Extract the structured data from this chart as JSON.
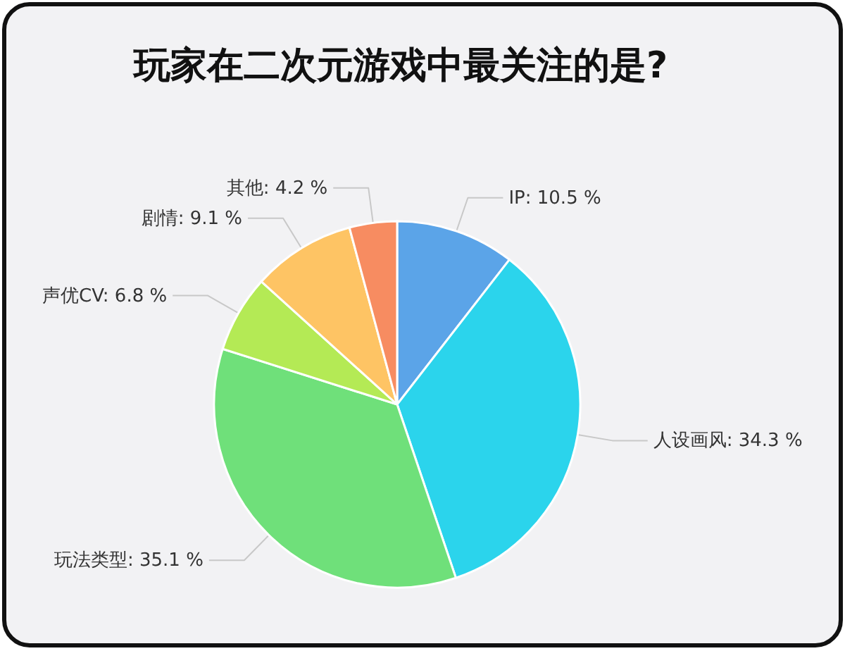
{
  "chart_data": {
    "type": "pie",
    "title": "玩家在二次元游戏中最关注的是?",
    "categories": [
      "IP",
      "人设画风",
      "玩法类型",
      "声优CV",
      "剧情",
      "其他"
    ],
    "values": [
      10.5,
      34.3,
      35.1,
      6.8,
      9.1,
      4.2
    ],
    "colors": [
      "#5ba4e8",
      "#2bd4ec",
      "#6fe07a",
      "#b4ea55",
      "#fec464",
      "#f78c61"
    ],
    "value_labels": [
      "10.5 %",
      "34.3 %",
      "35.1 %",
      "6.8 %",
      "9.1 %",
      "4.2 %"
    ]
  }
}
